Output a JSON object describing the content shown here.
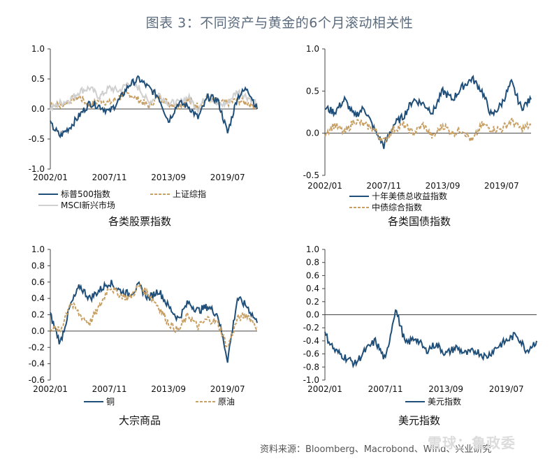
{
  "title": "图表 3：不同资产与黄金的6个月滚动相关性",
  "source": "资料来源：Bloomberg、Macrobond、Wind、兴业研究",
  "watermark": "雪球：鲁政委",
  "colors": {
    "navy": "#1f4e79",
    "gold": "#c8a064",
    "gray": "#d0d0d0"
  },
  "chart_data": [
    {
      "type": "line",
      "caption": "各类股票指数",
      "x_ticks": [
        "2002/01",
        "2007/11",
        "2013/09",
        "2019/07"
      ],
      "ylim": [
        -1.0,
        1.0
      ],
      "y_ticks": [
        "1.0",
        "0.5",
        "0.0",
        "-0.5",
        "-1.0"
      ],
      "y_tick_values": [
        1.0,
        0.5,
        0.0,
        -0.5,
        -1.0
      ],
      "x": [
        "2002/01",
        "2003/01",
        "2004/01",
        "2005/01",
        "2006/01",
        "2007/01",
        "2007/11",
        "2008/06",
        "2009/06",
        "2010/06",
        "2011/06",
        "2012/06",
        "2013/09",
        "2014/06",
        "2015/06",
        "2016/06",
        "2017/06",
        "2018/06",
        "2019/07",
        "2020/06",
        "2021/06",
        "2022/06"
      ],
      "series": [
        {
          "name": "标普500指数",
          "color": "#1f4e79",
          "dash": false,
          "values": [
            -0.25,
            -0.45,
            -0.3,
            -0.1,
            0.1,
            0.05,
            -0.05,
            0.15,
            0.4,
            0.5,
            0.35,
            0.2,
            -0.2,
            0.1,
            0.05,
            -0.15,
            0.2,
            0.15,
            -0.4,
            0.2,
            0.35,
            0.0
          ]
        },
        {
          "name": "上证综指",
          "color": "#c8a064",
          "dash": true,
          "values": [
            0.1,
            0.05,
            0.15,
            0.2,
            0.05,
            0.15,
            0.1,
            0.2,
            0.25,
            0.15,
            0.05,
            0.2,
            0.1,
            0.05,
            0.15,
            0.05,
            0.2,
            0.1,
            0.1,
            0.15,
            0.1,
            0.05
          ]
        },
        {
          "name": "MSCI新兴市场",
          "color": "#d0d0d0",
          "dash": false,
          "values": [
            0.0,
            0.1,
            0.15,
            0.3,
            0.35,
            0.2,
            0.35,
            0.3,
            0.45,
            0.35,
            0.1,
            0.25,
            0.1,
            0.1,
            0.2,
            0.0,
            0.25,
            0.05,
            0.1,
            0.3,
            0.2,
            0.1
          ]
        }
      ]
    },
    {
      "type": "line",
      "caption": "各类国债指数",
      "x_ticks": [
        "2002/01",
        "2007/11",
        "2013/09",
        "2019/07"
      ],
      "ylim": [
        -0.5,
        1.0
      ],
      "y_ticks": [
        "1.0",
        "0.5",
        "0.0",
        "-0.5"
      ],
      "y_tick_values": [
        1.0,
        0.5,
        0.0,
        -0.5
      ],
      "x": [
        "2002/01",
        "2003/01",
        "2004/01",
        "2005/01",
        "2006/01",
        "2007/01",
        "2007/11",
        "2008/06",
        "2009/06",
        "2010/06",
        "2011/06",
        "2012/06",
        "2013/09",
        "2014/06",
        "2015/06",
        "2016/06",
        "2017/06",
        "2018/06",
        "2019/07",
        "2020/06",
        "2021/06",
        "2022/06"
      ],
      "series": [
        {
          "name": "十年美债总收益指数",
          "color": "#1f4e79",
          "dash": false,
          "values": [
            0.3,
            0.25,
            0.4,
            0.2,
            0.3,
            0.05,
            -0.15,
            0.1,
            0.2,
            0.4,
            0.35,
            0.25,
            0.5,
            0.4,
            0.55,
            0.65,
            0.5,
            0.2,
            0.35,
            0.6,
            0.3,
            0.4
          ]
        },
        {
          "name": "中债综合指数",
          "color": "#c8a064",
          "dash": true,
          "values": [
            0.0,
            0.1,
            0.0,
            0.15,
            0.1,
            0.05,
            -0.1,
            0.05,
            0.1,
            0.0,
            0.1,
            -0.05,
            0.1,
            0.0,
            0.05,
            -0.1,
            0.1,
            0.05,
            0.05,
            0.15,
            0.05,
            0.1
          ]
        }
      ]
    },
    {
      "type": "line",
      "caption": "大宗商品",
      "x_ticks": [
        "2002/01",
        "2007/11",
        "2013/09",
        "2019/07"
      ],
      "ylim": [
        -0.6,
        1.0
      ],
      "y_ticks": [
        "1.0",
        "0.8",
        "0.6",
        "0.4",
        "0.2",
        "0.0",
        "-0.2",
        "-0.4",
        "-0.6"
      ],
      "y_tick_values": [
        1.0,
        0.8,
        0.6,
        0.4,
        0.2,
        0.0,
        -0.2,
        -0.4,
        -0.6
      ],
      "x": [
        "2002/01",
        "2003/01",
        "2004/01",
        "2005/01",
        "2006/01",
        "2007/01",
        "2007/11",
        "2008/06",
        "2009/06",
        "2010/06",
        "2011/06",
        "2012/06",
        "2013/09",
        "2014/06",
        "2015/06",
        "2016/06",
        "2017/06",
        "2018/06",
        "2019/07",
        "2020/06",
        "2021/06",
        "2022/06"
      ],
      "series": [
        {
          "name": "铜",
          "color": "#1f4e79",
          "dash": false,
          "values": [
            0.2,
            -0.15,
            0.3,
            0.55,
            0.4,
            0.5,
            0.6,
            0.5,
            0.45,
            0.55,
            0.4,
            0.5,
            0.3,
            0.15,
            0.35,
            0.25,
            0.3,
            0.2,
            -0.35,
            0.4,
            0.3,
            0.1
          ]
        },
        {
          "name": "原油",
          "color": "#c8a064",
          "dash": true,
          "values": [
            0.05,
            0.0,
            0.35,
            0.2,
            0.1,
            0.3,
            0.55,
            0.45,
            0.4,
            0.55,
            0.45,
            0.3,
            0.1,
            0.0,
            0.2,
            0.05,
            0.15,
            0.1,
            -0.2,
            0.15,
            0.2,
            0.05
          ]
        }
      ]
    },
    {
      "type": "line",
      "caption": "美元指数",
      "x_ticks": [
        "2002/01",
        "2007/11",
        "2013/09",
        "2019/07"
      ],
      "ylim": [
        -1.0,
        1.0
      ],
      "y_ticks": [
        "1.0",
        "0.8",
        "0.6",
        "0.4",
        "0.2",
        "0.0",
        "-0.2",
        "-0.4",
        "-0.6",
        "-0.8",
        "-1.0"
      ],
      "y_tick_values": [
        1.0,
        0.8,
        0.6,
        0.4,
        0.2,
        0.0,
        -0.2,
        -0.4,
        -0.6,
        -0.8,
        -1.0
      ],
      "x": [
        "2002/01",
        "2003/01",
        "2004/01",
        "2005/01",
        "2006/01",
        "2007/01",
        "2007/11",
        "2008/06",
        "2009/06",
        "2010/06",
        "2011/06",
        "2012/06",
        "2013/09",
        "2014/06",
        "2015/06",
        "2016/06",
        "2017/06",
        "2018/06",
        "2019/07",
        "2020/06",
        "2021/06",
        "2022/06"
      ],
      "series": [
        {
          "name": "美元指数",
          "color": "#1f4e79",
          "dash": false,
          "values": [
            -0.3,
            -0.55,
            -0.65,
            -0.75,
            -0.55,
            -0.4,
            -0.7,
            0.1,
            -0.45,
            -0.35,
            -0.55,
            -0.45,
            -0.6,
            -0.5,
            -0.6,
            -0.55,
            -0.65,
            -0.5,
            -0.4,
            -0.3,
            -0.55,
            -0.4
          ]
        }
      ]
    }
  ]
}
